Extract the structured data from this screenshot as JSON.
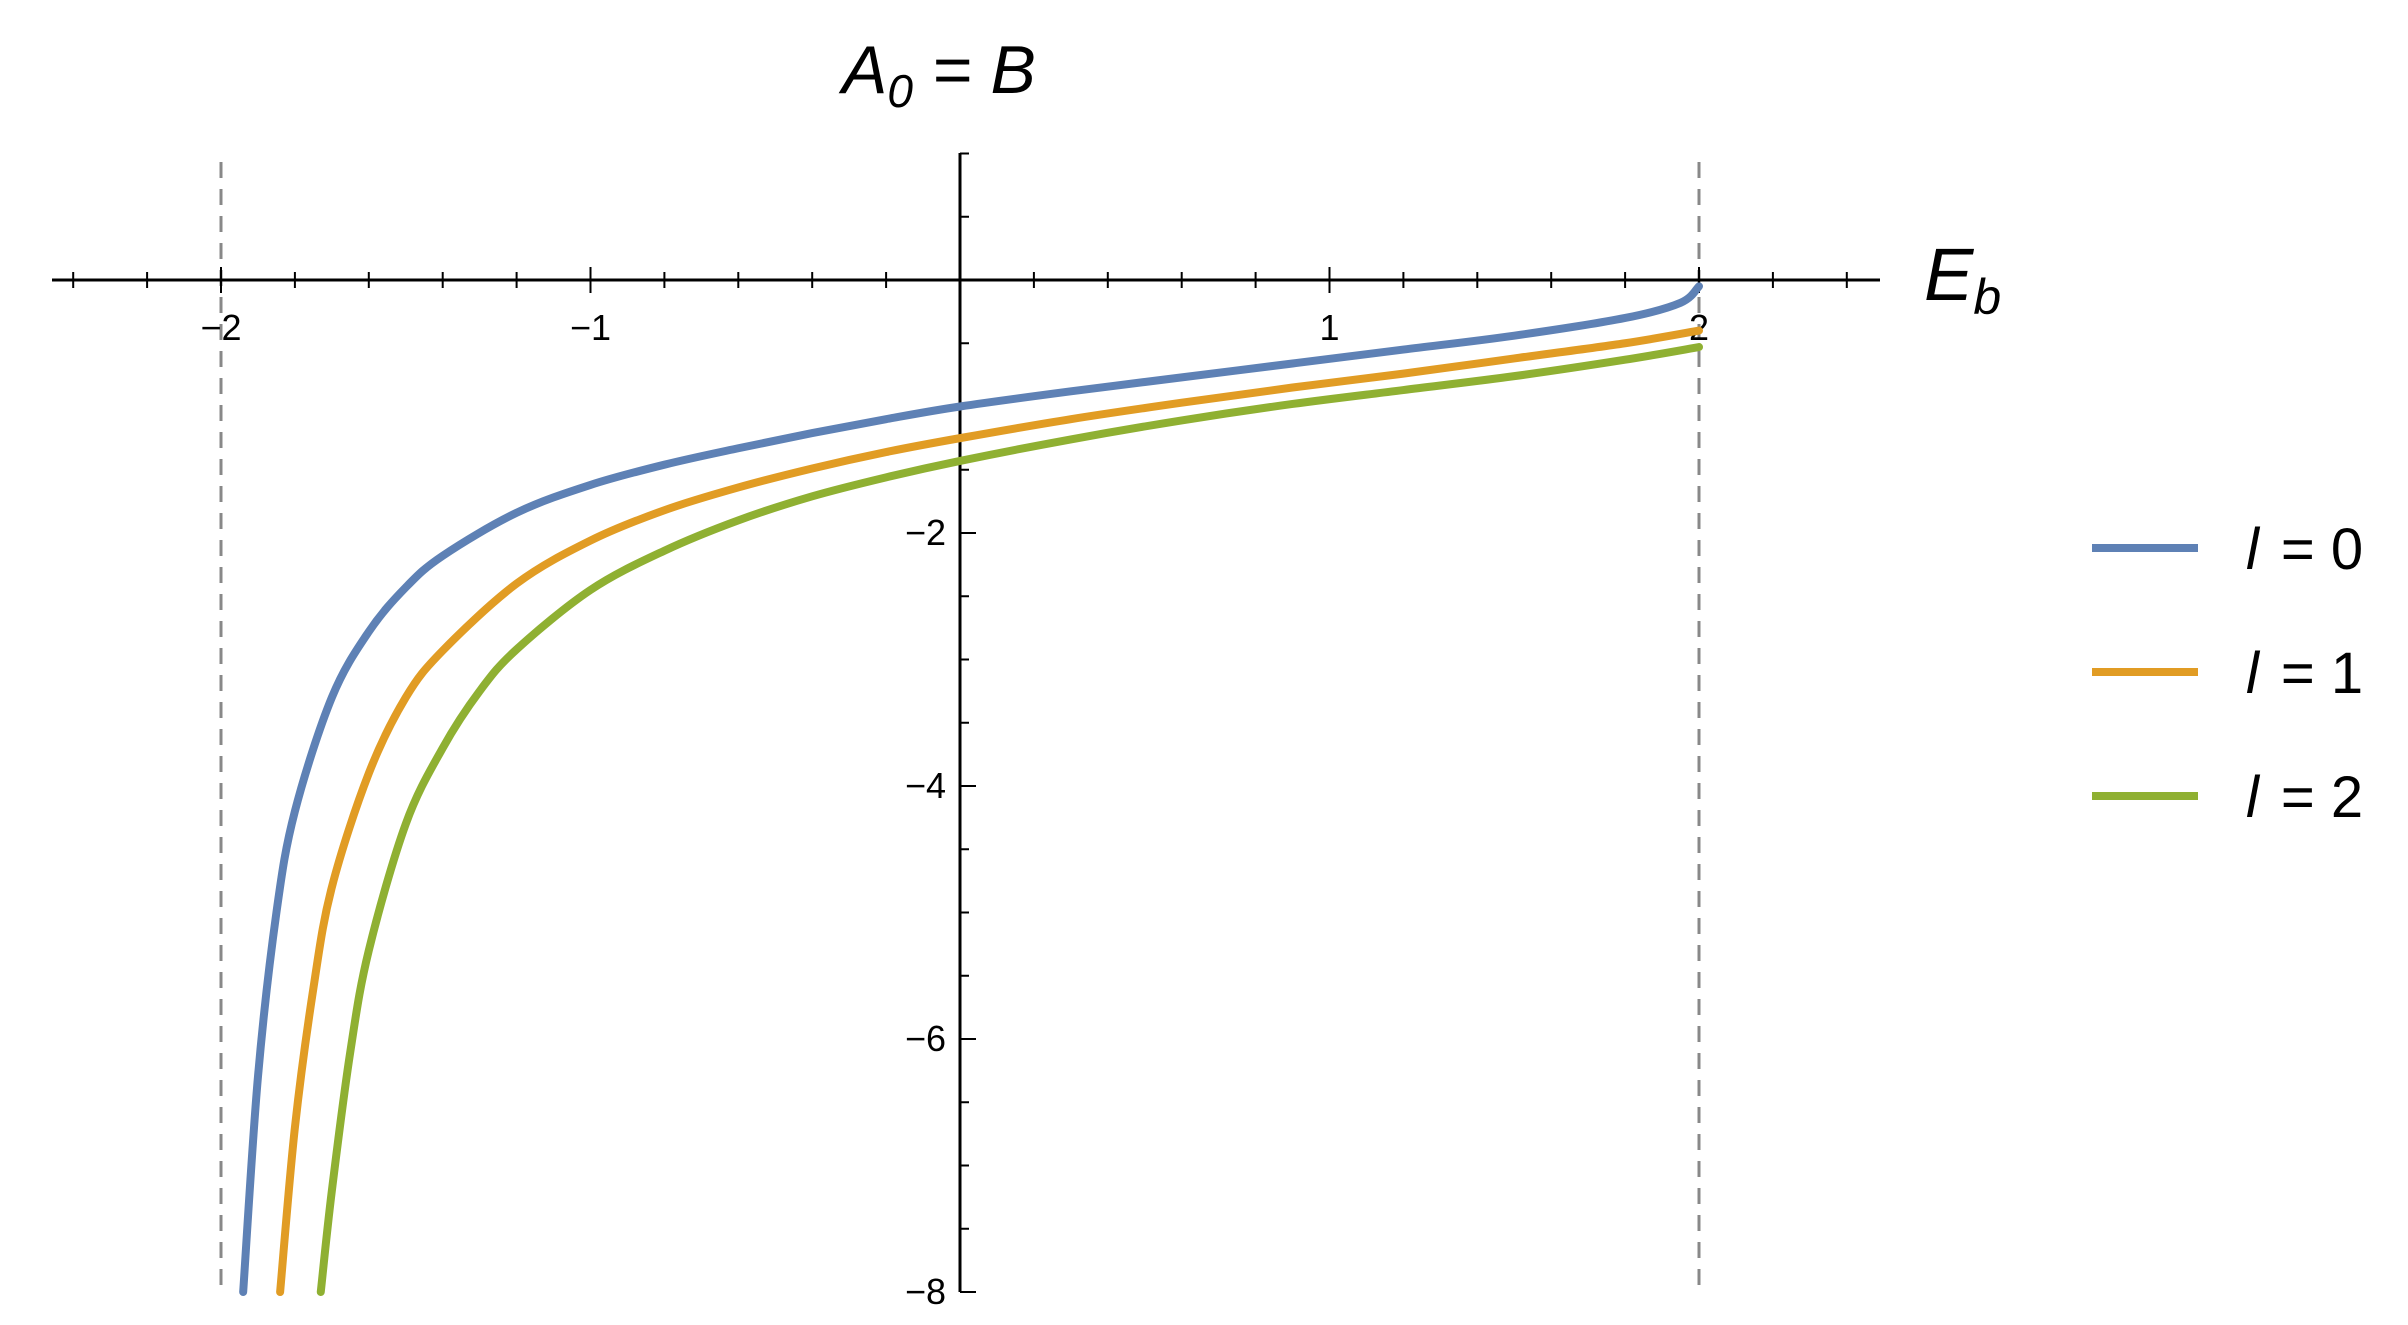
{
  "chart_data": {
    "type": "line",
    "title": {
      "main": "A",
      "sub": "0",
      "rest": " = B"
    },
    "xlabel": {
      "main": "E",
      "sub": "b"
    },
    "ylabel": "",
    "xlim": [
      -2.5,
      2.5
    ],
    "ylim": [
      -8.0,
      1.0
    ],
    "x_ticks": [
      -2,
      -1,
      1,
      2
    ],
    "x_tick_labels": [
      "−2",
      "−1",
      "1",
      "2"
    ],
    "y_ticks": [
      -2,
      -4,
      -6,
      -8
    ],
    "y_tick_labels": [
      "−2",
      "−4",
      "−6",
      "−8"
    ],
    "vertical_reference_lines": [
      -2,
      2
    ],
    "grid": false,
    "legend_position": "right",
    "series": [
      {
        "name": "l = 0",
        "legend_var": "l",
        "legend_value": "= 0",
        "color": "#5E81B5",
        "x": [
          -1.94,
          -1.9,
          -1.85,
          -1.8,
          -1.7,
          -1.6,
          -1.5,
          -1.4,
          -1.2,
          -1.0,
          -0.8,
          -0.6,
          -0.4,
          -0.2,
          0.0,
          0.3,
          0.6,
          0.9,
          1.2,
          1.5,
          1.8,
          1.95,
          2.0
        ],
        "y": [
          -8.0,
          -6.3,
          -5.0,
          -4.2,
          -3.3,
          -2.78,
          -2.43,
          -2.18,
          -1.84,
          -1.62,
          -1.46,
          -1.33,
          -1.21,
          -1.1,
          -1.0,
          -0.88,
          -0.77,
          -0.66,
          -0.55,
          -0.44,
          -0.3,
          -0.18,
          -0.05
        ]
      },
      {
        "name": "l = 1",
        "legend_var": "l",
        "legend_value": "= 1",
        "color": "#E19C24",
        "x": [
          -1.84,
          -1.8,
          -1.75,
          -1.7,
          -1.6,
          -1.5,
          -1.4,
          -1.2,
          -1.0,
          -0.8,
          -0.6,
          -0.4,
          -0.2,
          0.0,
          0.3,
          0.6,
          0.9,
          1.2,
          1.5,
          1.8,
          2.0
        ],
        "y": [
          -8.0,
          -6.7,
          -5.6,
          -4.8,
          -3.9,
          -3.3,
          -2.93,
          -2.4,
          -2.06,
          -1.82,
          -1.64,
          -1.49,
          -1.36,
          -1.25,
          -1.1,
          -0.97,
          -0.85,
          -0.74,
          -0.62,
          -0.5,
          -0.4
        ]
      },
      {
        "name": "l = 2",
        "legend_var": "l",
        "legend_value": "= 2",
        "color": "#8FB032",
        "x": [
          -1.73,
          -1.7,
          -1.65,
          -1.6,
          -1.5,
          -1.4,
          -1.3,
          -1.2,
          -1.0,
          -0.8,
          -0.6,
          -0.4,
          -0.2,
          0.0,
          0.3,
          0.6,
          0.9,
          1.2,
          1.5,
          1.8,
          2.0
        ],
        "y": [
          -8.0,
          -7.2,
          -6.1,
          -5.3,
          -4.3,
          -3.7,
          -3.25,
          -2.92,
          -2.45,
          -2.14,
          -1.9,
          -1.71,
          -1.56,
          -1.43,
          -1.26,
          -1.11,
          -0.98,
          -0.87,
          -0.76,
          -0.63,
          -0.53
        ]
      }
    ]
  }
}
